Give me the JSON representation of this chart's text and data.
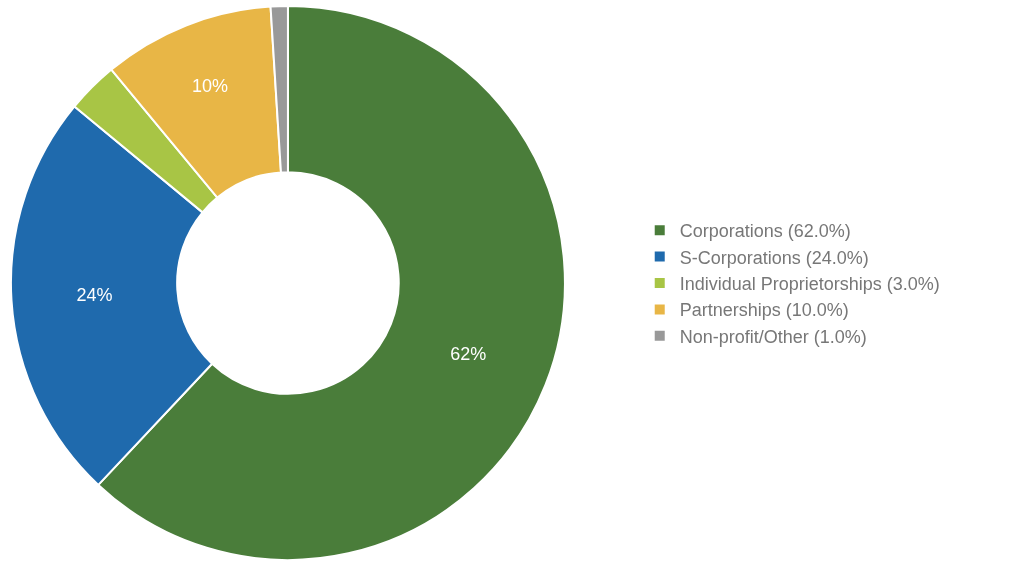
{
  "chart_data": {
    "type": "donut",
    "categories": [
      "Corporations (62.0%)",
      "S-Corporations (24.0%)",
      "Individual Proprietorships (3.0%)",
      "Partnerships (10.0%)",
      "Non-profit/Other (1.0%)"
    ],
    "values": [
      62,
      24,
      3,
      10,
      1
    ],
    "colors": [
      "#4a7d3a",
      "#1f6aad",
      "#a8c545",
      "#e8b646",
      "#999999"
    ],
    "value_labels": [
      "62%",
      "24%",
      null,
      "10%",
      null
    ],
    "legend": "right"
  }
}
